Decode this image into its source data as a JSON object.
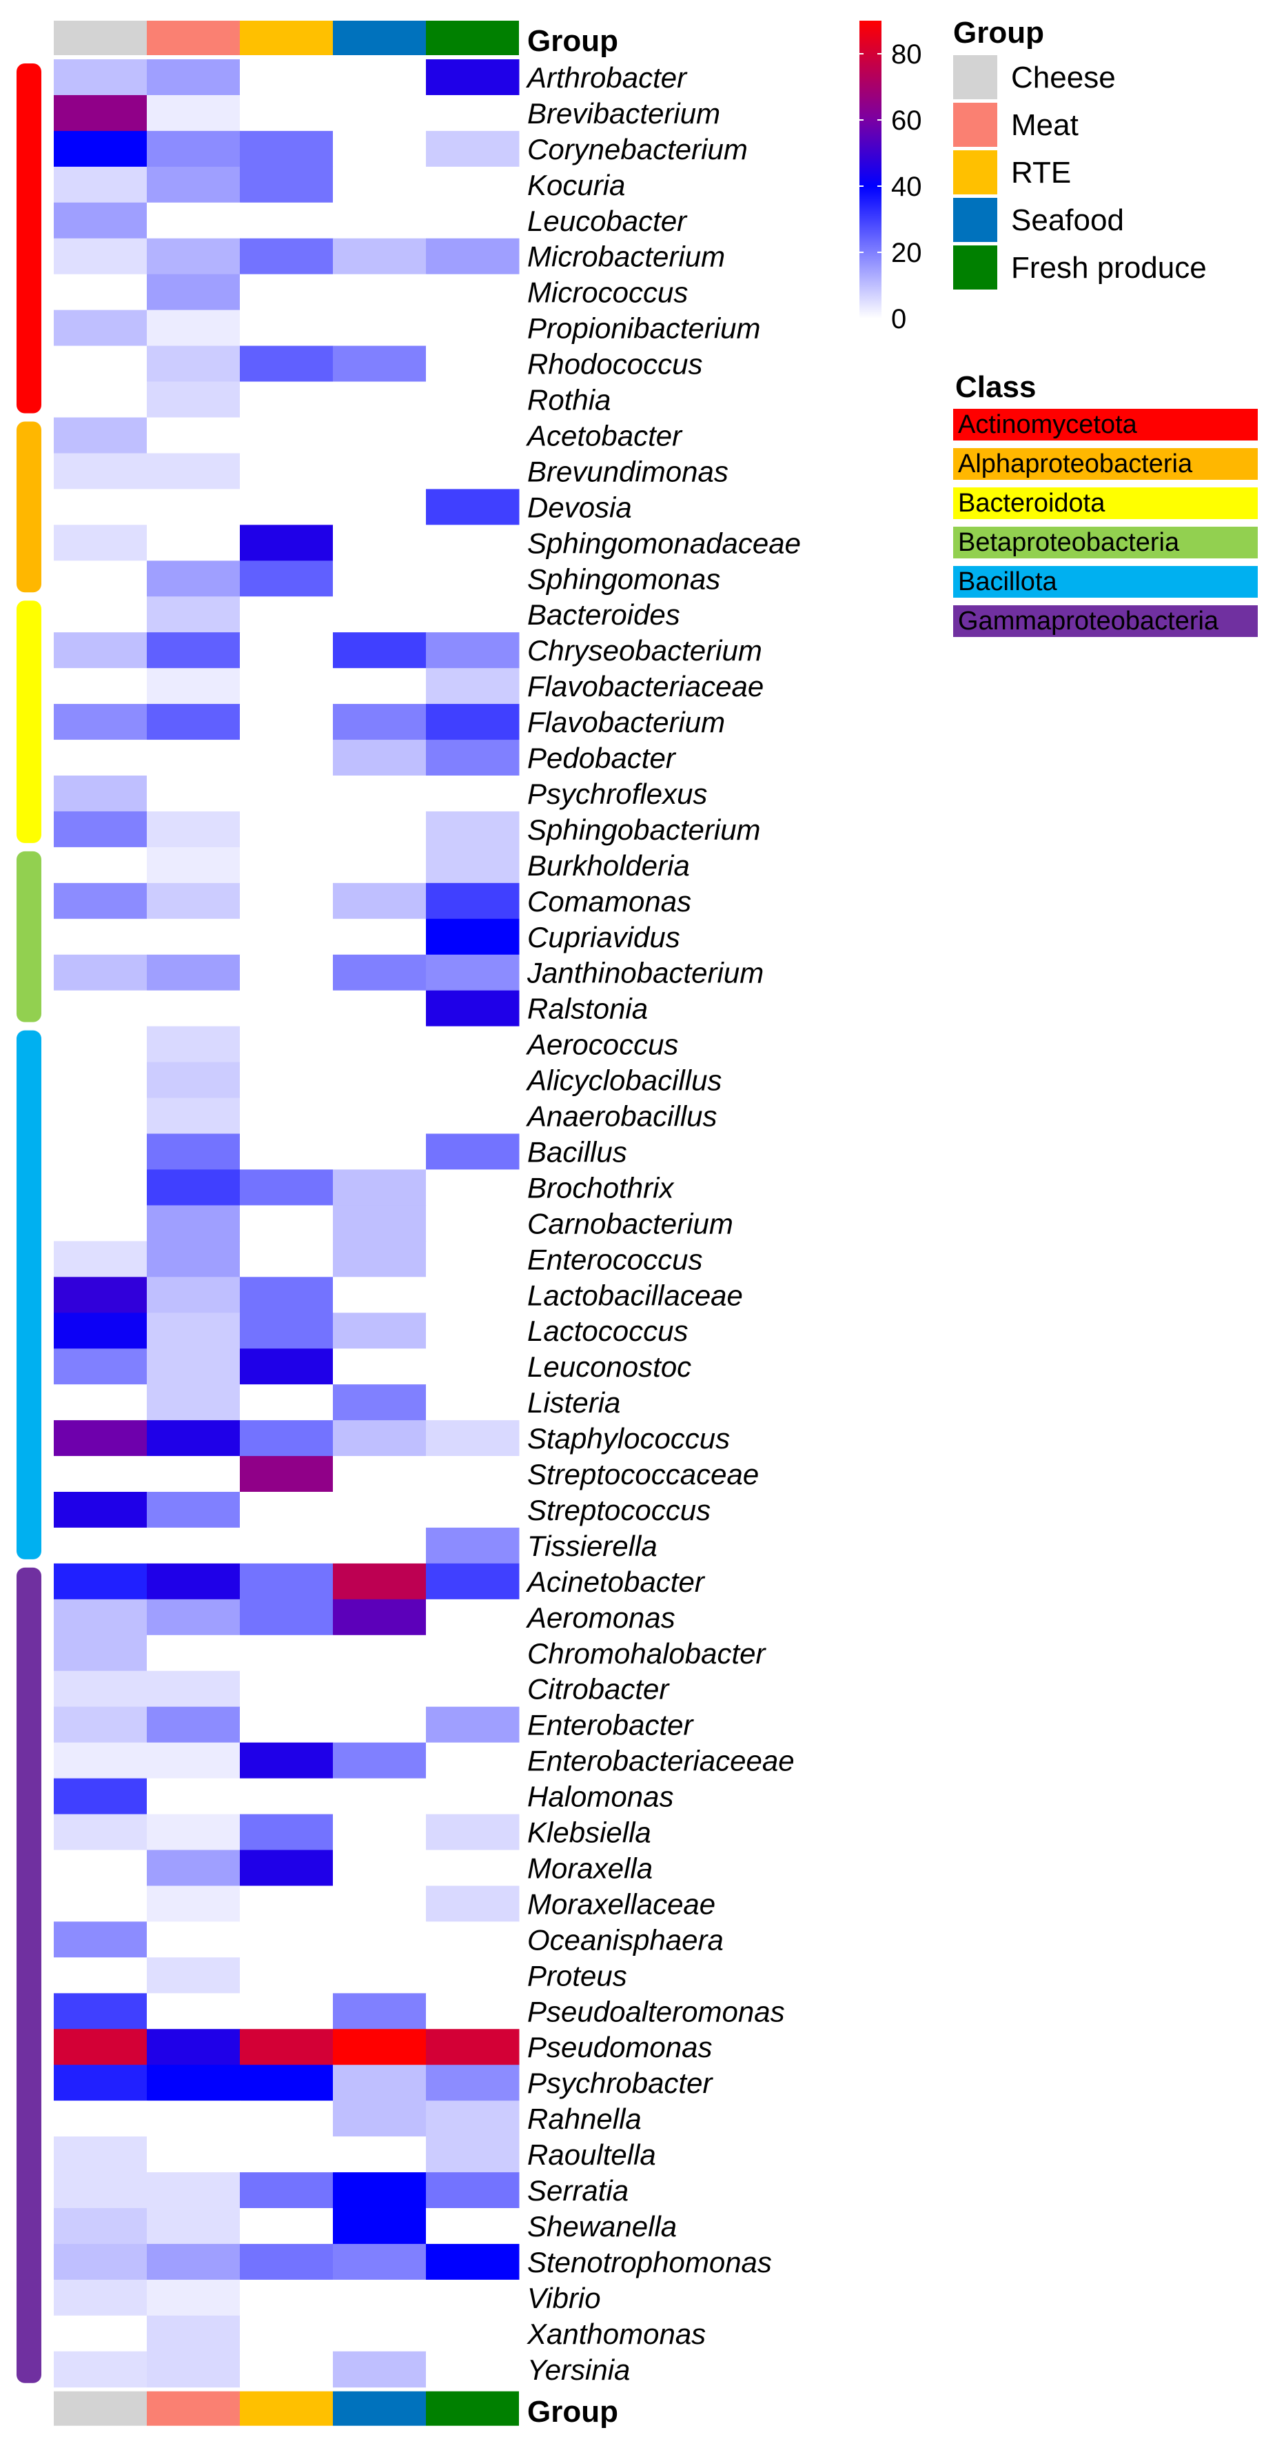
{
  "chart_data": {
    "type": "heatmap",
    "columns": [
      "Cheese",
      "Meat",
      "RTE",
      "Seafood",
      "Fresh produce"
    ],
    "column_colors": [
      "#d3d3d3",
      "#fa8072",
      "#ffc000",
      "#0072bd",
      "#008000"
    ],
    "group_title": "Group",
    "bottom_group_label": "Group",
    "class_title": "Class",
    "classes": [
      {
        "name": "Actinomycetota",
        "color": "#ff0000",
        "rows": 10
      },
      {
        "name": "Alphaproteobacteria",
        "color": "#ffb700",
        "rows": 5
      },
      {
        "name": "Bacteroidota",
        "color": "#ffff00",
        "rows": 7
      },
      {
        "name": "Betaproteobacteria",
        "color": "#92d050",
        "rows": 5
      },
      {
        "name": "Bacillota",
        "color": "#00b0f0",
        "rows": 15
      },
      {
        "name": "Gammaproteobacteria",
        "color": "#7030a0",
        "rows": 23
      }
    ],
    "colorbar": {
      "min": 0,
      "max": 90,
      "ticks": [
        0,
        20,
        40,
        60,
        80
      ]
    },
    "rows": [
      {
        "name": "Arthrobacter",
        "values": [
          10,
          15,
          0,
          0,
          45
        ]
      },
      {
        "name": "Brevibacterium",
        "values": [
          65,
          3,
          0,
          0,
          0
        ]
      },
      {
        "name": "Corynebacterium",
        "values": [
          40,
          18,
          22,
          0,
          8
        ]
      },
      {
        "name": "Kocuria",
        "values": [
          6,
          15,
          22,
          0,
          0
        ]
      },
      {
        "name": "Leucobacter",
        "values": [
          15,
          0,
          0,
          0,
          0
        ]
      },
      {
        "name": "Microbacterium",
        "values": [
          5,
          12,
          22,
          10,
          15
        ]
      },
      {
        "name": "Micrococcus",
        "values": [
          0,
          15,
          0,
          0,
          0
        ]
      },
      {
        "name": "Propionibacterium",
        "values": [
          10,
          3,
          0,
          0,
          0
        ]
      },
      {
        "name": "Rhodococcus",
        "values": [
          0,
          8,
          25,
          20,
          0
        ]
      },
      {
        "name": "Rothia",
        "values": [
          0,
          6,
          0,
          0,
          0
        ]
      },
      {
        "name": "Acetobacter",
        "values": [
          10,
          0,
          0,
          0,
          0
        ]
      },
      {
        "name": "Brevundimonas",
        "values": [
          5,
          5,
          0,
          0,
          0
        ]
      },
      {
        "name": "Devosia",
        "values": [
          0,
          0,
          0,
          0,
          30
        ]
      },
      {
        "name": "Sphingomonadaceae",
        "values": [
          5,
          0,
          45,
          0,
          0
        ]
      },
      {
        "name": "Sphingomonas",
        "values": [
          0,
          15,
          25,
          0,
          0
        ]
      },
      {
        "name": "Bacteroides",
        "values": [
          0,
          8,
          0,
          0,
          0
        ]
      },
      {
        "name": "Chryseobacterium",
        "values": [
          10,
          25,
          0,
          30,
          18
        ]
      },
      {
        "name": "Flavobacteriaceae",
        "values": [
          0,
          3,
          0,
          0,
          8
        ]
      },
      {
        "name": "Flavobacterium",
        "values": [
          18,
          25,
          0,
          20,
          30
        ]
      },
      {
        "name": "Pedobacter",
        "values": [
          0,
          0,
          0,
          10,
          20
        ]
      },
      {
        "name": "Psychroflexus",
        "values": [
          10,
          0,
          0,
          0,
          0
        ]
      },
      {
        "name": "Sphingobacterium",
        "values": [
          20,
          5,
          0,
          0,
          8
        ]
      },
      {
        "name": "Burkholderia",
        "values": [
          0,
          3,
          0,
          0,
          8
        ]
      },
      {
        "name": "Comamonas",
        "values": [
          18,
          8,
          0,
          10,
          30
        ]
      },
      {
        "name": "Cupriavidus",
        "values": [
          0,
          0,
          0,
          0,
          40
        ]
      },
      {
        "name": "Janthinobacterium",
        "values": [
          10,
          15,
          0,
          20,
          18
        ]
      },
      {
        "name": "Ralstonia",
        "values": [
          0,
          0,
          0,
          0,
          45
        ]
      },
      {
        "name": "Aerococcus",
        "values": [
          0,
          6,
          0,
          0,
          0
        ]
      },
      {
        "name": "Alicyclobacillus",
        "values": [
          0,
          8,
          0,
          0,
          0
        ]
      },
      {
        "name": "Anaerobacillus",
        "values": [
          0,
          6,
          0,
          0,
          0
        ]
      },
      {
        "name": "Bacillus",
        "values": [
          0,
          22,
          0,
          0,
          22
        ]
      },
      {
        "name": "Brochothrix",
        "values": [
          0,
          30,
          22,
          10,
          0
        ]
      },
      {
        "name": "Carnobacterium",
        "values": [
          0,
          15,
          0,
          10,
          0
        ]
      },
      {
        "name": "Enterococcus",
        "values": [
          5,
          15,
          0,
          10,
          0
        ]
      },
      {
        "name": "Lactobacillaceae",
        "values": [
          48,
          10,
          22,
          0,
          0
        ]
      },
      {
        "name": "Lactococcus",
        "values": [
          42,
          8,
          22,
          10,
          0
        ]
      },
      {
        "name": "Leuconostoc",
        "values": [
          20,
          8,
          45,
          0,
          0
        ]
      },
      {
        "name": "Listeria",
        "values": [
          0,
          8,
          0,
          20,
          0
        ]
      },
      {
        "name": "Staphylococcus",
        "values": [
          58,
          45,
          22,
          10,
          6
        ]
      },
      {
        "name": "Streptococcaceae",
        "values": [
          0,
          0,
          65,
          0,
          0
        ]
      },
      {
        "name": "Streptococcus",
        "values": [
          45,
          20,
          0,
          0,
          0
        ]
      },
      {
        "name": "Tissierella",
        "values": [
          0,
          0,
          0,
          0,
          18
        ]
      },
      {
        "name": "Acinetobacter",
        "values": [
          35,
          45,
          22,
          75,
          30
        ]
      },
      {
        "name": "Aeromonas",
        "values": [
          10,
          15,
          22,
          55,
          0
        ]
      },
      {
        "name": "Chromohalobacter",
        "values": [
          10,
          0,
          0,
          0,
          0
        ]
      },
      {
        "name": "Citrobacter",
        "values": [
          5,
          5,
          0,
          0,
          0
        ]
      },
      {
        "name": "Enterobacter",
        "values": [
          8,
          18,
          0,
          0,
          15
        ]
      },
      {
        "name": "Enterobacteriaceeae",
        "values": [
          3,
          3,
          45,
          20,
          0
        ]
      },
      {
        "name": "Halomonas",
        "values": [
          30,
          0,
          0,
          0,
          0
        ]
      },
      {
        "name": "Klebsiella",
        "values": [
          5,
          3,
          22,
          0,
          6
        ]
      },
      {
        "name": "Moraxella",
        "values": [
          0,
          15,
          45,
          0,
          0
        ]
      },
      {
        "name": "Moraxellaceae",
        "values": [
          0,
          3,
          0,
          0,
          6
        ]
      },
      {
        "name": "Oceanisphaera",
        "values": [
          18,
          0,
          0,
          0,
          0
        ]
      },
      {
        "name": "Proteus",
        "values": [
          0,
          5,
          0,
          0,
          0
        ]
      },
      {
        "name": "Pseudoalteromonas",
        "values": [
          30,
          0,
          0,
          20,
          0
        ]
      },
      {
        "name": "Pseudomonas",
        "values": [
          80,
          45,
          80,
          90,
          80
        ]
      },
      {
        "name": "Psychrobacter",
        "values": [
          35,
          40,
          40,
          10,
          18
        ]
      },
      {
        "name": "Rahnella",
        "values": [
          0,
          0,
          0,
          10,
          8
        ]
      },
      {
        "name": "Raoultella",
        "values": [
          5,
          0,
          0,
          0,
          8
        ]
      },
      {
        "name": "Serratia",
        "values": [
          5,
          5,
          22,
          40,
          22
        ]
      },
      {
        "name": "Shewanella",
        "values": [
          8,
          5,
          0,
          40,
          0
        ]
      },
      {
        "name": "Stenotrophomonas",
        "values": [
          10,
          15,
          22,
          20,
          40
        ]
      },
      {
        "name": "Vibrio",
        "values": [
          5,
          3,
          0,
          0,
          0
        ]
      },
      {
        "name": "Xanthomonas",
        "values": [
          0,
          6,
          0,
          0,
          0
        ]
      },
      {
        "name": "Yersinia",
        "values": [
          5,
          6,
          0,
          10,
          0
        ]
      }
    ]
  }
}
